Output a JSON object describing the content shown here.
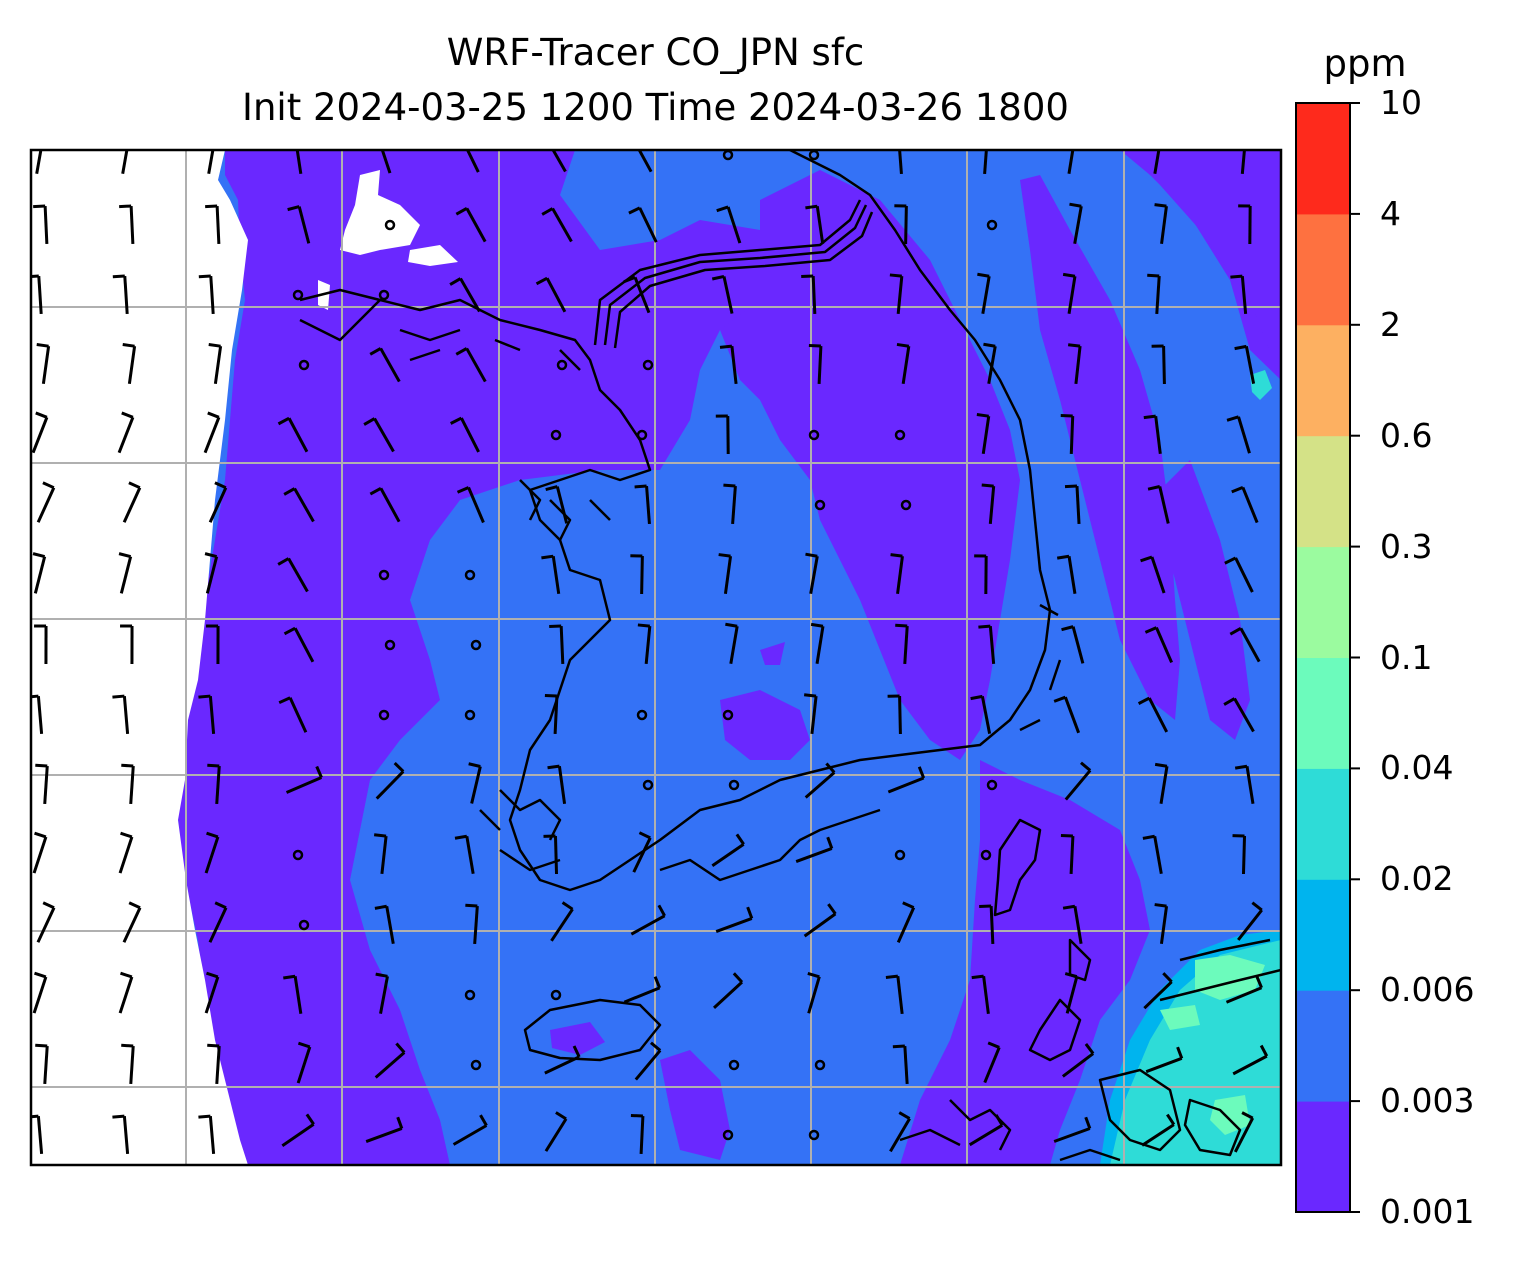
{
  "title": {
    "line1": "WRF-Tracer CO_JPN sfc",
    "line2": "Init 2024-03-25 1200 Time 2024-03-26 1800"
  },
  "colorbar": {
    "unit": "ppm",
    "levels": [
      "0.001",
      "0.003",
      "0.006",
      "0.02",
      "0.04",
      "0.1",
      "0.3",
      "0.6",
      "2",
      "4",
      "10"
    ],
    "colors": [
      "#6a28ff",
      "#3472f6",
      "#00b4ee",
      "#2edcd7",
      "#6cfbbc",
      "#9bfb9f",
      "#d4e287",
      "#fdb061",
      "#fe7140",
      "#fe2a1c"
    ]
  },
  "map": {
    "variable": "CO_JPN tracer concentration (surface)",
    "no_data_color": "#ffffff",
    "gridline_color": "#b0b0b0",
    "features": [
      "coastlines",
      "gridlines",
      "wind-barbs",
      "calm-wind-circles",
      "filled-contours"
    ]
  }
}
